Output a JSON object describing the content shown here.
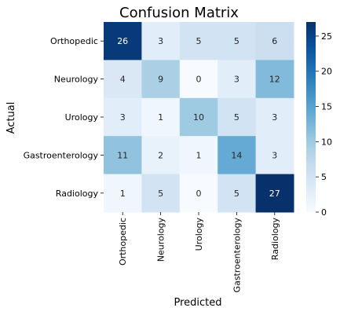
{
  "chart_data": {
    "type": "heatmap",
    "title": "Confusion Matrix",
    "xlabel": "Predicted",
    "ylabel": "Actual",
    "x_categories": [
      "Orthopedic",
      "Neurology",
      "Urology",
      "Gastroenterology",
      "Radiology"
    ],
    "y_categories": [
      "Orthopedic",
      "Neurology",
      "Urology",
      "Gastroenterology",
      "Radiology"
    ],
    "values": [
      [
        26,
        3,
        5,
        5,
        6
      ],
      [
        4,
        9,
        0,
        3,
        12
      ],
      [
        3,
        1,
        10,
        5,
        3
      ],
      [
        11,
        2,
        1,
        14,
        3
      ],
      [
        1,
        5,
        0,
        5,
        27
      ]
    ],
    "colormap": "Blues",
    "vmin": 0,
    "vmax": 27,
    "colorbar_ticks": [
      "0",
      "5",
      "10",
      "15",
      "20",
      "25"
    ],
    "colorbar_tick_values": [
      0,
      5,
      10,
      15,
      20,
      25
    ]
  }
}
